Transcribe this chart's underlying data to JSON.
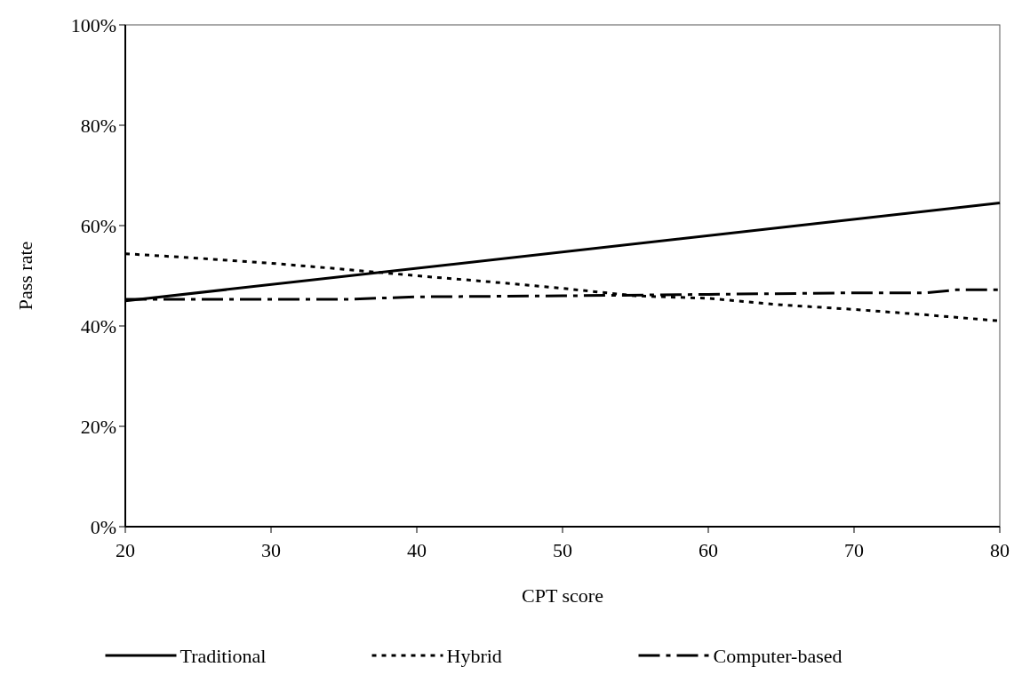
{
  "chart_data": {
    "type": "line",
    "xlabel": "CPT score",
    "ylabel": "Pass rate",
    "xlim": [
      20,
      80
    ],
    "xticks": [
      20,
      30,
      40,
      50,
      60,
      70,
      80
    ],
    "ylim": [
      0,
      100
    ],
    "yticks": [
      {
        "value": 0,
        "label": "0%"
      },
      {
        "value": 20,
        "label": "20%"
      },
      {
        "value": 40,
        "label": "40%"
      },
      {
        "value": 60,
        "label": "60%"
      },
      {
        "value": 80,
        "label": "80%"
      },
      {
        "value": 100,
        "label": "100%"
      }
    ],
    "grid": false,
    "legend": "bottom",
    "marker": "none",
    "series": [
      {
        "name": "Traditional",
        "color": "#000000",
        "line_style": "solid",
        "x": [
          20,
          80
        ],
        "values": [
          45,
          64.5
        ]
      },
      {
        "name": "Hybrid",
        "color": "#000000",
        "line_style": "dotted",
        "x": [
          20,
          25,
          30,
          35,
          40,
          45,
          50,
          55,
          60,
          65,
          70,
          75,
          80
        ],
        "values": [
          54.4,
          53.5,
          52.5,
          51.3,
          50,
          48.8,
          47.5,
          46,
          45.5,
          44.2,
          43.3,
          42.2,
          41
        ]
      },
      {
        "name": "Computer-based",
        "color": "#000000",
        "line_style": "dashdot",
        "x": [
          20,
          35,
          40,
          50,
          60,
          70,
          75,
          77,
          80
        ],
        "values": [
          45.3,
          45.3,
          45.8,
          46,
          46.3,
          46.6,
          46.6,
          47.2,
          47.2
        ]
      }
    ]
  }
}
